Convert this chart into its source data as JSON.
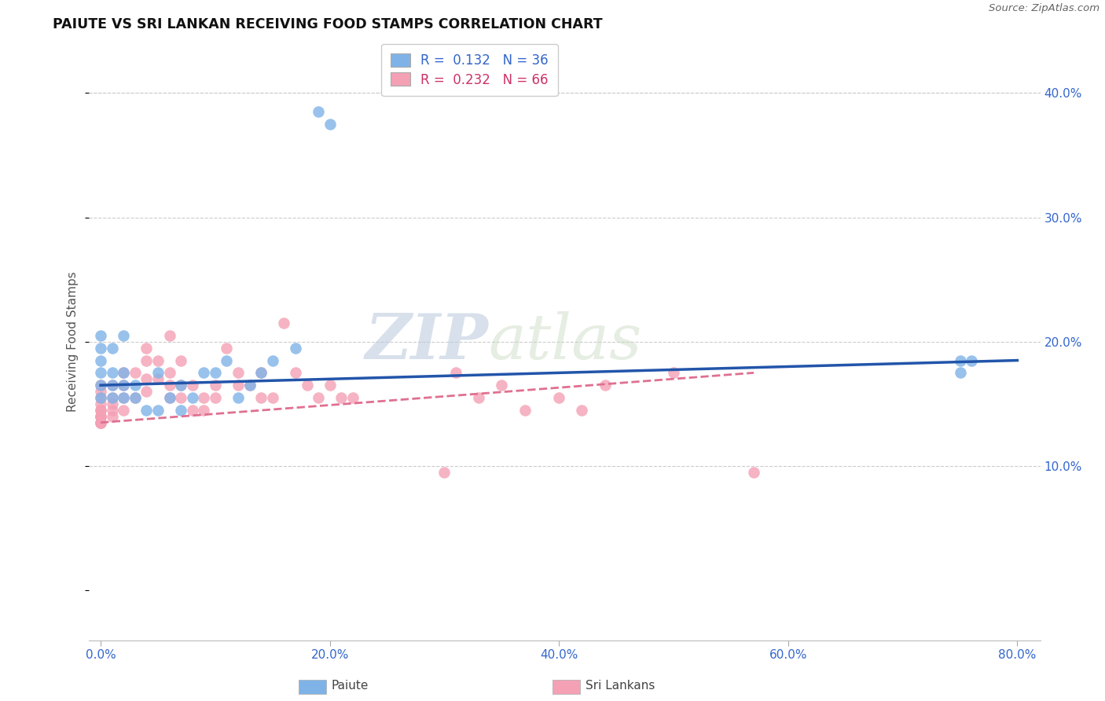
{
  "title": "PAIUTE VS SRI LANKAN RECEIVING FOOD STAMPS CORRELATION CHART",
  "source": "Source: ZipAtlas.com",
  "xlabel_ticks": [
    "0.0%",
    "20.0%",
    "40.0%",
    "60.0%",
    "80.0%"
  ],
  "xlabel_vals": [
    0.0,
    0.2,
    0.4,
    0.6,
    0.8
  ],
  "ylabel_ticks": [
    "10.0%",
    "20.0%",
    "30.0%",
    "40.0%"
  ],
  "ylabel_vals": [
    0.1,
    0.2,
    0.3,
    0.4
  ],
  "xlim": [
    -0.01,
    0.82
  ],
  "ylim": [
    -0.04,
    0.44
  ],
  "legend_blue_r": "0.132",
  "legend_blue_n": "36",
  "legend_pink_r": "0.232",
  "legend_pink_n": "66",
  "paiute_color": "#7FB3E8",
  "srilankan_color": "#F4A0B5",
  "paiute_line_color": "#2255AA",
  "srilankan_line_color": "#E07090",
  "watermark_zip": "ZIP",
  "watermark_atlas": "atlas",
  "ylabel": "Receiving Food Stamps",
  "paiute_label": "Paiute",
  "srilankan_label": "Sri Lankans",
  "paiute_x": [
    0.0,
    0.0,
    0.0,
    0.0,
    0.0,
    0.0,
    0.01,
    0.01,
    0.01,
    0.01,
    0.02,
    0.02,
    0.02,
    0.02,
    0.03,
    0.03,
    0.04,
    0.05,
    0.05,
    0.06,
    0.07,
    0.07,
    0.08,
    0.09,
    0.1,
    0.11,
    0.12,
    0.13,
    0.14,
    0.15,
    0.17,
    0.19,
    0.2,
    0.75,
    0.75,
    0.76
  ],
  "paiute_y": [
    0.155,
    0.165,
    0.175,
    0.185,
    0.195,
    0.205,
    0.155,
    0.165,
    0.175,
    0.195,
    0.155,
    0.165,
    0.175,
    0.205,
    0.155,
    0.165,
    0.145,
    0.145,
    0.175,
    0.155,
    0.145,
    0.165,
    0.155,
    0.175,
    0.175,
    0.185,
    0.155,
    0.165,
    0.175,
    0.185,
    0.195,
    0.385,
    0.375,
    0.175,
    0.185,
    0.185
  ],
  "srilankan_x": [
    0.0,
    0.0,
    0.0,
    0.0,
    0.0,
    0.0,
    0.0,
    0.0,
    0.0,
    0.0,
    0.0,
    0.0,
    0.01,
    0.01,
    0.01,
    0.01,
    0.01,
    0.02,
    0.02,
    0.02,
    0.02,
    0.03,
    0.03,
    0.04,
    0.04,
    0.04,
    0.04,
    0.05,
    0.05,
    0.06,
    0.06,
    0.06,
    0.06,
    0.07,
    0.07,
    0.07,
    0.08,
    0.08,
    0.09,
    0.09,
    0.1,
    0.1,
    0.11,
    0.12,
    0.12,
    0.13,
    0.14,
    0.14,
    0.15,
    0.16,
    0.17,
    0.18,
    0.19,
    0.2,
    0.21,
    0.22,
    0.3,
    0.31,
    0.33,
    0.35,
    0.37,
    0.4,
    0.42,
    0.44,
    0.5,
    0.57
  ],
  "srilankan_y": [
    0.135,
    0.135,
    0.135,
    0.14,
    0.14,
    0.14,
    0.145,
    0.145,
    0.15,
    0.155,
    0.16,
    0.165,
    0.14,
    0.145,
    0.15,
    0.155,
    0.165,
    0.145,
    0.155,
    0.165,
    0.175,
    0.155,
    0.175,
    0.16,
    0.17,
    0.185,
    0.195,
    0.17,
    0.185,
    0.155,
    0.165,
    0.175,
    0.205,
    0.155,
    0.165,
    0.185,
    0.145,
    0.165,
    0.145,
    0.155,
    0.155,
    0.165,
    0.195,
    0.165,
    0.175,
    0.165,
    0.155,
    0.175,
    0.155,
    0.215,
    0.175,
    0.165,
    0.155,
    0.165,
    0.155,
    0.155,
    0.095,
    0.175,
    0.155,
    0.165,
    0.145,
    0.155,
    0.145,
    0.165,
    0.175,
    0.095
  ],
  "blue_line_x0": 0.0,
  "blue_line_y0": 0.165,
  "blue_line_x1": 0.8,
  "blue_line_y1": 0.185,
  "pink_line_x0": 0.0,
  "pink_line_y0": 0.135,
  "pink_line_x1": 0.57,
  "pink_line_y1": 0.175
}
